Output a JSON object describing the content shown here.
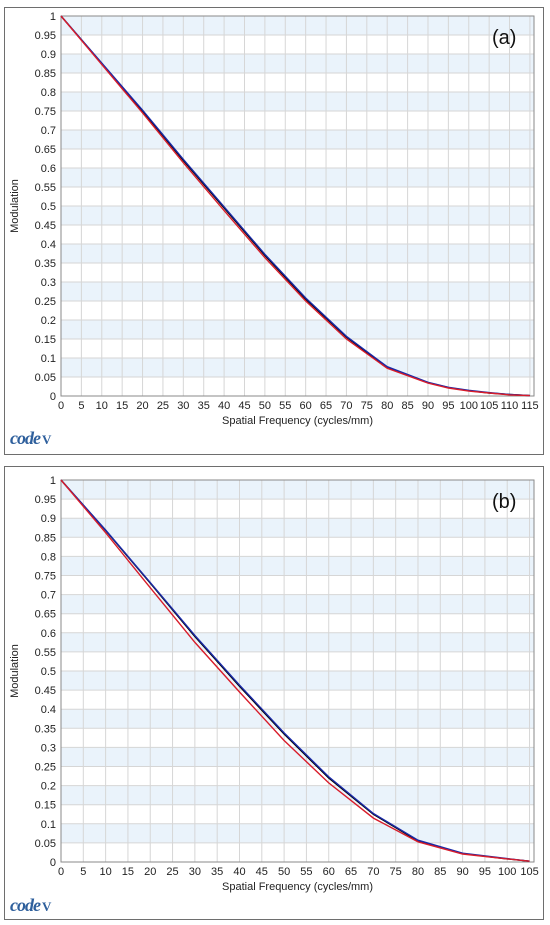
{
  "chart_data": [
    {
      "type": "line",
      "panel_label": "(a)",
      "xlabel": "Spatial Frequency (cycles/mm)",
      "ylabel": "Modulation",
      "xlim": [
        0,
        116
      ],
      "ylim": [
        0,
        1
      ],
      "x_ticks": [
        "0",
        "5",
        "10",
        "15",
        "20",
        "25",
        "30",
        "35",
        "40",
        "45",
        "50",
        "55",
        "60",
        "65",
        "70",
        "75",
        "80",
        "85",
        "90",
        "95",
        "100",
        "105",
        "110",
        "115"
      ],
      "y_ticks": [
        "0",
        "0.05",
        "0.1",
        "0.15",
        "0.2",
        "0.25",
        "0.3",
        "0.35",
        "0.4",
        "0.45",
        "0.5",
        "0.55",
        "0.6",
        "0.65",
        "0.7",
        "0.75",
        "0.8",
        "0.85",
        "0.9",
        "0.95",
        "1"
      ],
      "grid": true,
      "series": [
        {
          "color": "#000000",
          "x": [
            0,
            10,
            20,
            30,
            40,
            50,
            60,
            70,
            80,
            90,
            95,
            100,
            105,
            110,
            115
          ],
          "y": [
            1,
            0.875,
            0.75,
            0.62,
            0.495,
            0.37,
            0.255,
            0.155,
            0.075,
            0.035,
            0.022,
            0.014,
            0.008,
            0.004,
            0.001
          ]
        },
        {
          "color": "#1a2aa8",
          "x": [
            0,
            10,
            20,
            30,
            40,
            50,
            60,
            70,
            80,
            90,
            95,
            100,
            105,
            110,
            115
          ],
          "y": [
            1,
            0.876,
            0.752,
            0.623,
            0.498,
            0.373,
            0.258,
            0.157,
            0.077,
            0.036,
            0.023,
            0.015,
            0.009,
            0.004,
            0.001
          ]
        },
        {
          "color": "#d81c2a",
          "x": [
            0,
            10,
            20,
            30,
            40,
            50,
            60,
            70,
            80,
            90,
            95,
            100,
            105,
            110,
            115
          ],
          "y": [
            1,
            0.872,
            0.745,
            0.614,
            0.488,
            0.364,
            0.25,
            0.15,
            0.073,
            0.034,
            0.021,
            0.013,
            0.008,
            0.003,
            0.001
          ]
        }
      ]
    },
    {
      "type": "line",
      "panel_label": "(b)",
      "xlabel": "Spatial Frequency (cycles/mm)",
      "ylabel": "Modulation",
      "xlim": [
        0,
        106
      ],
      "ylim": [
        0,
        1
      ],
      "x_ticks": [
        "0",
        "5",
        "10",
        "15",
        "20",
        "25",
        "30",
        "35",
        "40",
        "45",
        "50",
        "55",
        "60",
        "65",
        "70",
        "75",
        "80",
        "85",
        "90",
        "95",
        "100",
        "105"
      ],
      "y_ticks": [
        "0",
        "0.05",
        "0.1",
        "0.15",
        "0.2",
        "0.25",
        "0.3",
        "0.35",
        "0.4",
        "0.45",
        "0.5",
        "0.55",
        "0.6",
        "0.65",
        "0.7",
        "0.75",
        "0.8",
        "0.85",
        "0.9",
        "0.95",
        "1"
      ],
      "grid": true,
      "series": [
        {
          "color": "#000000",
          "x": [
            0,
            10,
            20,
            30,
            40,
            50,
            60,
            70,
            80,
            90,
            100,
            105
          ],
          "y": [
            1,
            0.868,
            0.73,
            0.59,
            0.46,
            0.335,
            0.22,
            0.125,
            0.055,
            0.022,
            0.008,
            0.002
          ]
        },
        {
          "color": "#1a2aa8",
          "x": [
            0,
            10,
            20,
            30,
            40,
            50,
            60,
            70,
            80,
            90,
            100,
            105
          ],
          "y": [
            1,
            0.869,
            0.732,
            0.593,
            0.463,
            0.338,
            0.223,
            0.127,
            0.057,
            0.023,
            0.009,
            0.002
          ]
        },
        {
          "color": "#d81c2a",
          "x": [
            0,
            10,
            20,
            30,
            40,
            50,
            60,
            70,
            80,
            90,
            100,
            105
          ],
          "y": [
            1,
            0.862,
            0.718,
            0.575,
            0.445,
            0.318,
            0.207,
            0.115,
            0.053,
            0.021,
            0.008,
            0.002
          ]
        }
      ]
    }
  ],
  "logo_text": "code V"
}
